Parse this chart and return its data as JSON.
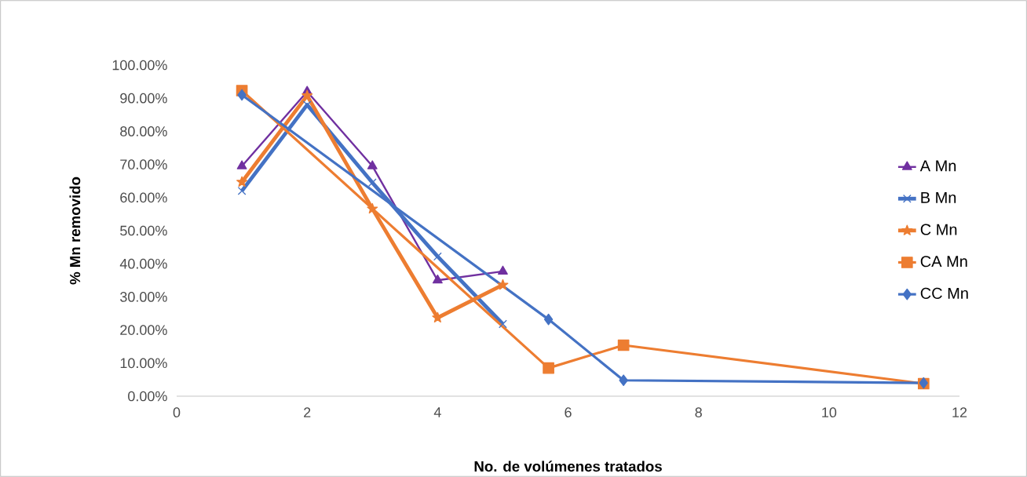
{
  "chart_data": {
    "type": "line",
    "xlabel": "No. de volúmenes tratados",
    "ylabel": "% Mn removido",
    "xlim": [
      0,
      12
    ],
    "xticks": [
      0,
      2,
      4,
      6,
      8,
      10,
      12
    ],
    "ylim": [
      0,
      100
    ],
    "yticks": [
      {
        "value": 0,
        "label": "0.00%"
      },
      {
        "value": 10,
        "label": "10.00%"
      },
      {
        "value": 20,
        "label": "20.00%"
      },
      {
        "value": 30,
        "label": "30.00%"
      },
      {
        "value": 40,
        "label": "40.00%"
      },
      {
        "value": 50,
        "label": "50.00%"
      },
      {
        "value": 60,
        "label": "60.00%"
      },
      {
        "value": 70,
        "label": "70.00%"
      },
      {
        "value": 80,
        "label": "80.00%"
      },
      {
        "value": 90,
        "label": "90.00%"
      },
      {
        "value": 100,
        "label": "100.00%"
      }
    ],
    "legend": "right",
    "series": [
      {
        "name": "A Mn",
        "color": "#7030a0",
        "marker": "triangle",
        "x": [
          1,
          2,
          3,
          4,
          5
        ],
        "values": [
          69.5,
          92,
          69.5,
          35,
          37.7
        ]
      },
      {
        "name": "B Mn",
        "color": "#4472c4",
        "marker": "cross",
        "x": [
          1,
          2,
          3,
          4,
          5
        ],
        "values": [
          62,
          88,
          64.5,
          42.2,
          21.8
        ]
      },
      {
        "name": "C Mn",
        "color": "#ed7d31",
        "marker": "star",
        "x": [
          1,
          2,
          3,
          4,
          5
        ],
        "values": [
          64.7,
          90.8,
          56.6,
          23.7,
          33.6
        ]
      },
      {
        "name": "CA Mn",
        "color": "#ed7d31",
        "marker": "square",
        "x": [
          1,
          5.7,
          6.85,
          11.45
        ],
        "values": [
          92.3,
          8.5,
          15.4,
          3.8
        ]
      },
      {
        "name": "CC Mn",
        "color": "#4472c4",
        "marker": "diamond",
        "x": [
          1,
          5.7,
          6.85,
          11.45
        ],
        "values": [
          91,
          23.2,
          4.8,
          4.0
        ]
      }
    ]
  }
}
